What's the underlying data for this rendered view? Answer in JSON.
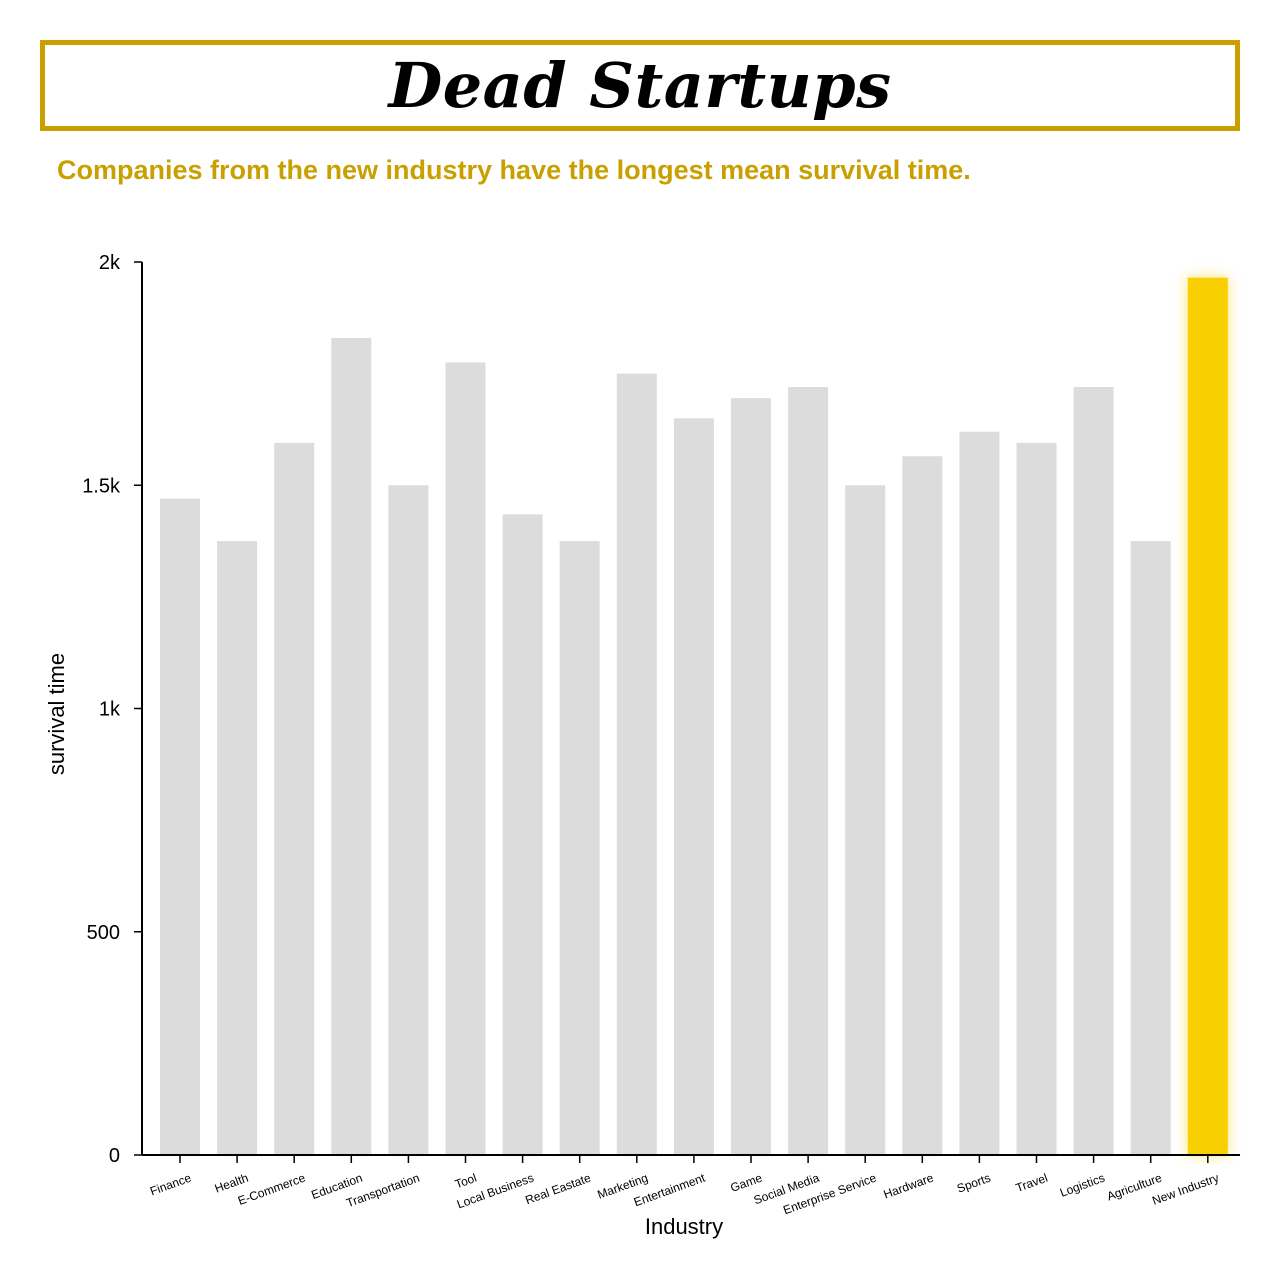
{
  "header": {
    "title": "Dead Startups",
    "subtitle": "Companies from the new industry have the longest mean survival time."
  },
  "colors": {
    "accent": "#c9a000",
    "highlight": "#f8cf00",
    "bar": "#dcdcdc"
  },
  "chart_data": {
    "type": "bar",
    "categories": [
      "Finance",
      "Health",
      "E-Commerce",
      "Education",
      "Transportation",
      "Tool",
      "Local Business",
      "Real Eastate",
      "Marketing",
      "Entertainment",
      "Game",
      "Social Media",
      "Enterprise Service",
      "Hardware",
      "Sports",
      "Travel",
      "Logistics",
      "Agriculture",
      "New Industry"
    ],
    "values": [
      1470,
      1375,
      1595,
      1830,
      1500,
      1775,
      1435,
      1375,
      1750,
      1650,
      1695,
      1720,
      1500,
      1565,
      1620,
      1595,
      1720,
      1375,
      1965
    ],
    "highlight": "New Industry",
    "xlabel": "Industry",
    "ylabel": "survival time",
    "ylim": [
      0,
      2000
    ],
    "yticks": [
      0,
      500,
      1000,
      1500,
      2000
    ],
    "ytick_labels": [
      "0",
      "500",
      "1k",
      "1.5k",
      "2k"
    ],
    "grid": false
  }
}
